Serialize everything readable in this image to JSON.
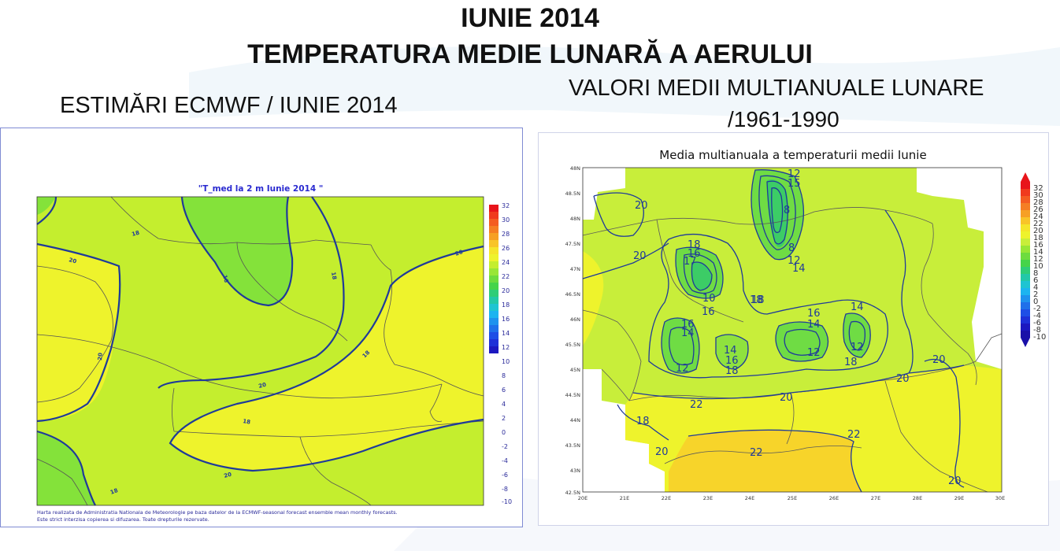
{
  "header": {
    "title_line1": "IUNIE 2014",
    "title_line2": "TEMPERATURA MEDIE LUNARĂ A AERULUI"
  },
  "left_panel": {
    "caption": "ESTIMĂRI ECMWF / IUNIE 2014",
    "map_title": "\"T_med la 2 m Iunie 2014 \"",
    "contour_labels": [
      "18",
      "20",
      "16",
      "18",
      "20",
      "20",
      "18",
      "20",
      "18",
      "20",
      "18"
    ],
    "colorbar_ticks": [
      "32",
      "30",
      "28",
      "26",
      "24",
      "22",
      "20",
      "18",
      "16",
      "14",
      "12",
      "10",
      "8",
      "6",
      "4",
      "2",
      "0",
      "-2",
      "-4",
      "-6",
      "-8",
      "-10"
    ],
    "footnote_line1": "Harta realizata de Administratia Nationala de Meteorologie pe baza datelor de la ECMWF-seasonal forecast ensemble mean monthly forecasts.",
    "footnote_line2": "Este strict interzisa copierea si difuzarea. Toate drepturile rezervate."
  },
  "right_panel": {
    "caption_line1": "VALORI MEDII MULTIANUALE LUNARE",
    "caption_line2": "/1961-1990",
    "map_title": "Media multianuala a temperaturii medii Iunie",
    "lat_labels": [
      "48N",
      "48.5N",
      "48N",
      "47.5N",
      "47N",
      "46.5N",
      "46N",
      "45.5N",
      "45N",
      "44.5N",
      "44N",
      "43.5N",
      "43N",
      "42.5N"
    ],
    "lon_labels": [
      "20E",
      "21E",
      "22E",
      "23E",
      "24E",
      "25E",
      "26E",
      "27E",
      "28E",
      "29E",
      "30E"
    ],
    "contour_labels": [
      "20",
      "20",
      "18",
      "16",
      "17",
      "10",
      "16",
      "18",
      "8",
      "8",
      "12",
      "14",
      "12",
      "15",
      "18",
      "16",
      "14",
      "12",
      "14",
      "16",
      "18",
      "16",
      "14",
      "12",
      "14",
      "12",
      "18",
      "20",
      "20",
      "20",
      "22",
      "18",
      "20",
      "22",
      "22",
      "20"
    ],
    "colorbar_ticks": [
      "32",
      "30",
      "28",
      "26",
      "24",
      "22",
      "20",
      "18",
      "16",
      "14",
      "12",
      "10",
      "8",
      "6",
      "4",
      "2",
      "0",
      "-2",
      "-4",
      "-6",
      "-8",
      "-10"
    ]
  },
  "colors": {
    "map_green": "#7fe03a",
    "map_lime": "#c4ee2e",
    "map_yellow": "#eef32c",
    "map_orange": "#f5d31e",
    "contour": "#1f3a9a",
    "border": "#505050"
  }
}
